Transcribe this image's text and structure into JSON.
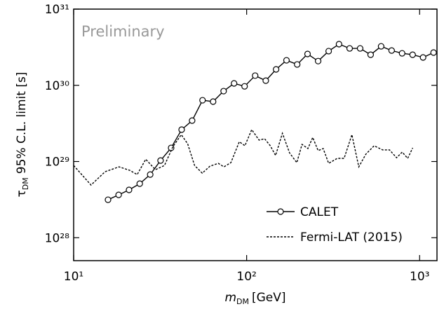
{
  "chart_data": {
    "type": "line",
    "annotation": "Preliminary",
    "x_label": {
      "symbol": "m",
      "subscript": "DM",
      "text": "[GeV]"
    },
    "y_label": {
      "symbol": "τ",
      "subscript": "DM",
      "text": "95% C.L. limit [s]"
    },
    "xscale": "log",
    "yscale": "log",
    "xlim": [
      10,
      1260
    ],
    "ylim": [
      5e+27,
      1e+31
    ],
    "xticks": [
      {
        "value": 10,
        "label": "10¹"
      },
      {
        "value": 100,
        "label": "10²"
      },
      {
        "value": 1000,
        "label": "10³"
      }
    ],
    "yticks": [
      {
        "value": 1e+28,
        "label": "10²⁸"
      },
      {
        "value": 1e+29,
        "label": "10²⁹"
      },
      {
        "value": 1e+30,
        "label": "10³⁰"
      },
      {
        "value": 1e+31,
        "label": "10³¹"
      }
    ],
    "legend": "lower right",
    "series": [
      {
        "name": "CALET",
        "color": "#000000",
        "line_style": "solid",
        "marker": "circle",
        "x": [
          15.8,
          18.2,
          20.9,
          24.1,
          27.7,
          31.8,
          36.6,
          42.1,
          48.4,
          55.6,
          64.0,
          73.6,
          84.6,
          97.3,
          112,
          129,
          148,
          170,
          196,
          225,
          259,
          298,
          342,
          394,
          453,
          521,
          599,
          689,
          792,
          911,
          1047,
          1204
        ],
        "values": [
          3.15e+28,
          3.65e+28,
          4.24e+28,
          5.12e+28,
          6.74e+28,
          1.03e+29,
          1.51e+29,
          2.62e+29,
          3.44e+29,
          6.37e+29,
          6.11e+29,
          8.39e+29,
          1.06e+30,
          9.7e+29,
          1.34e+30,
          1.15e+30,
          1.62e+30,
          2.13e+30,
          1.88e+30,
          2.58e+30,
          2.08e+30,
          2.81e+30,
          3.47e+30,
          3.05e+30,
          3.05e+30,
          2.52e+30,
          3.25e+30,
          2.86e+30,
          2.63e+30,
          2.52e+30,
          2.32e+30,
          2.69e+30
        ]
      },
      {
        "name": "Fermi-LAT (2015)",
        "color": "#000000",
        "line_style": "dotted",
        "marker": null,
        "x": [
          10,
          12.6,
          15.2,
          18.3,
          21.1,
          23.3,
          26.1,
          29.7,
          33.5,
          37.5,
          41.9,
          45.6,
          50.0,
          55.4,
          61.4,
          68.6,
          73.9,
          81.1,
          90.7,
          97.7,
          107,
          118,
          127,
          137,
          147,
          161,
          177,
          195,
          209,
          226,
          241,
          259,
          277,
          298,
          334,
          366,
          406,
          445,
          489,
          546,
          611,
          670,
          736,
          793,
          853,
          912
        ],
        "values": [
          8.88e+28,
          4.91e+28,
          7.35e+28,
          8.51e+28,
          7.66e+28,
          6.74e+28,
          1.07e+29,
          7.82e+28,
          8.88e+28,
          1.57e+29,
          2.25e+29,
          1.71e+29,
          8.88e+28,
          7.03e+28,
          8.69e+28,
          9.46e+28,
          8.51e+28,
          9.66e+28,
          1.82e+29,
          1.61e+29,
          2.62e+29,
          1.91e+29,
          1.99e+29,
          1.61e+29,
          1.2e+29,
          2.35e+29,
          1.3e+29,
          9.66e+28,
          1.68e+29,
          1.48e+29,
          2.07e+29,
          1.39e+29,
          1.48e+29,
          9.46e+28,
          1.1e+29,
          1.1e+29,
          2.25e+29,
          8.51e+28,
          1.25e+29,
          1.61e+29,
          1.42e+29,
          1.42e+29,
          1.12e+29,
          1.33e+29,
          1.1e+29,
          1.51e+29
        ]
      }
    ]
  }
}
